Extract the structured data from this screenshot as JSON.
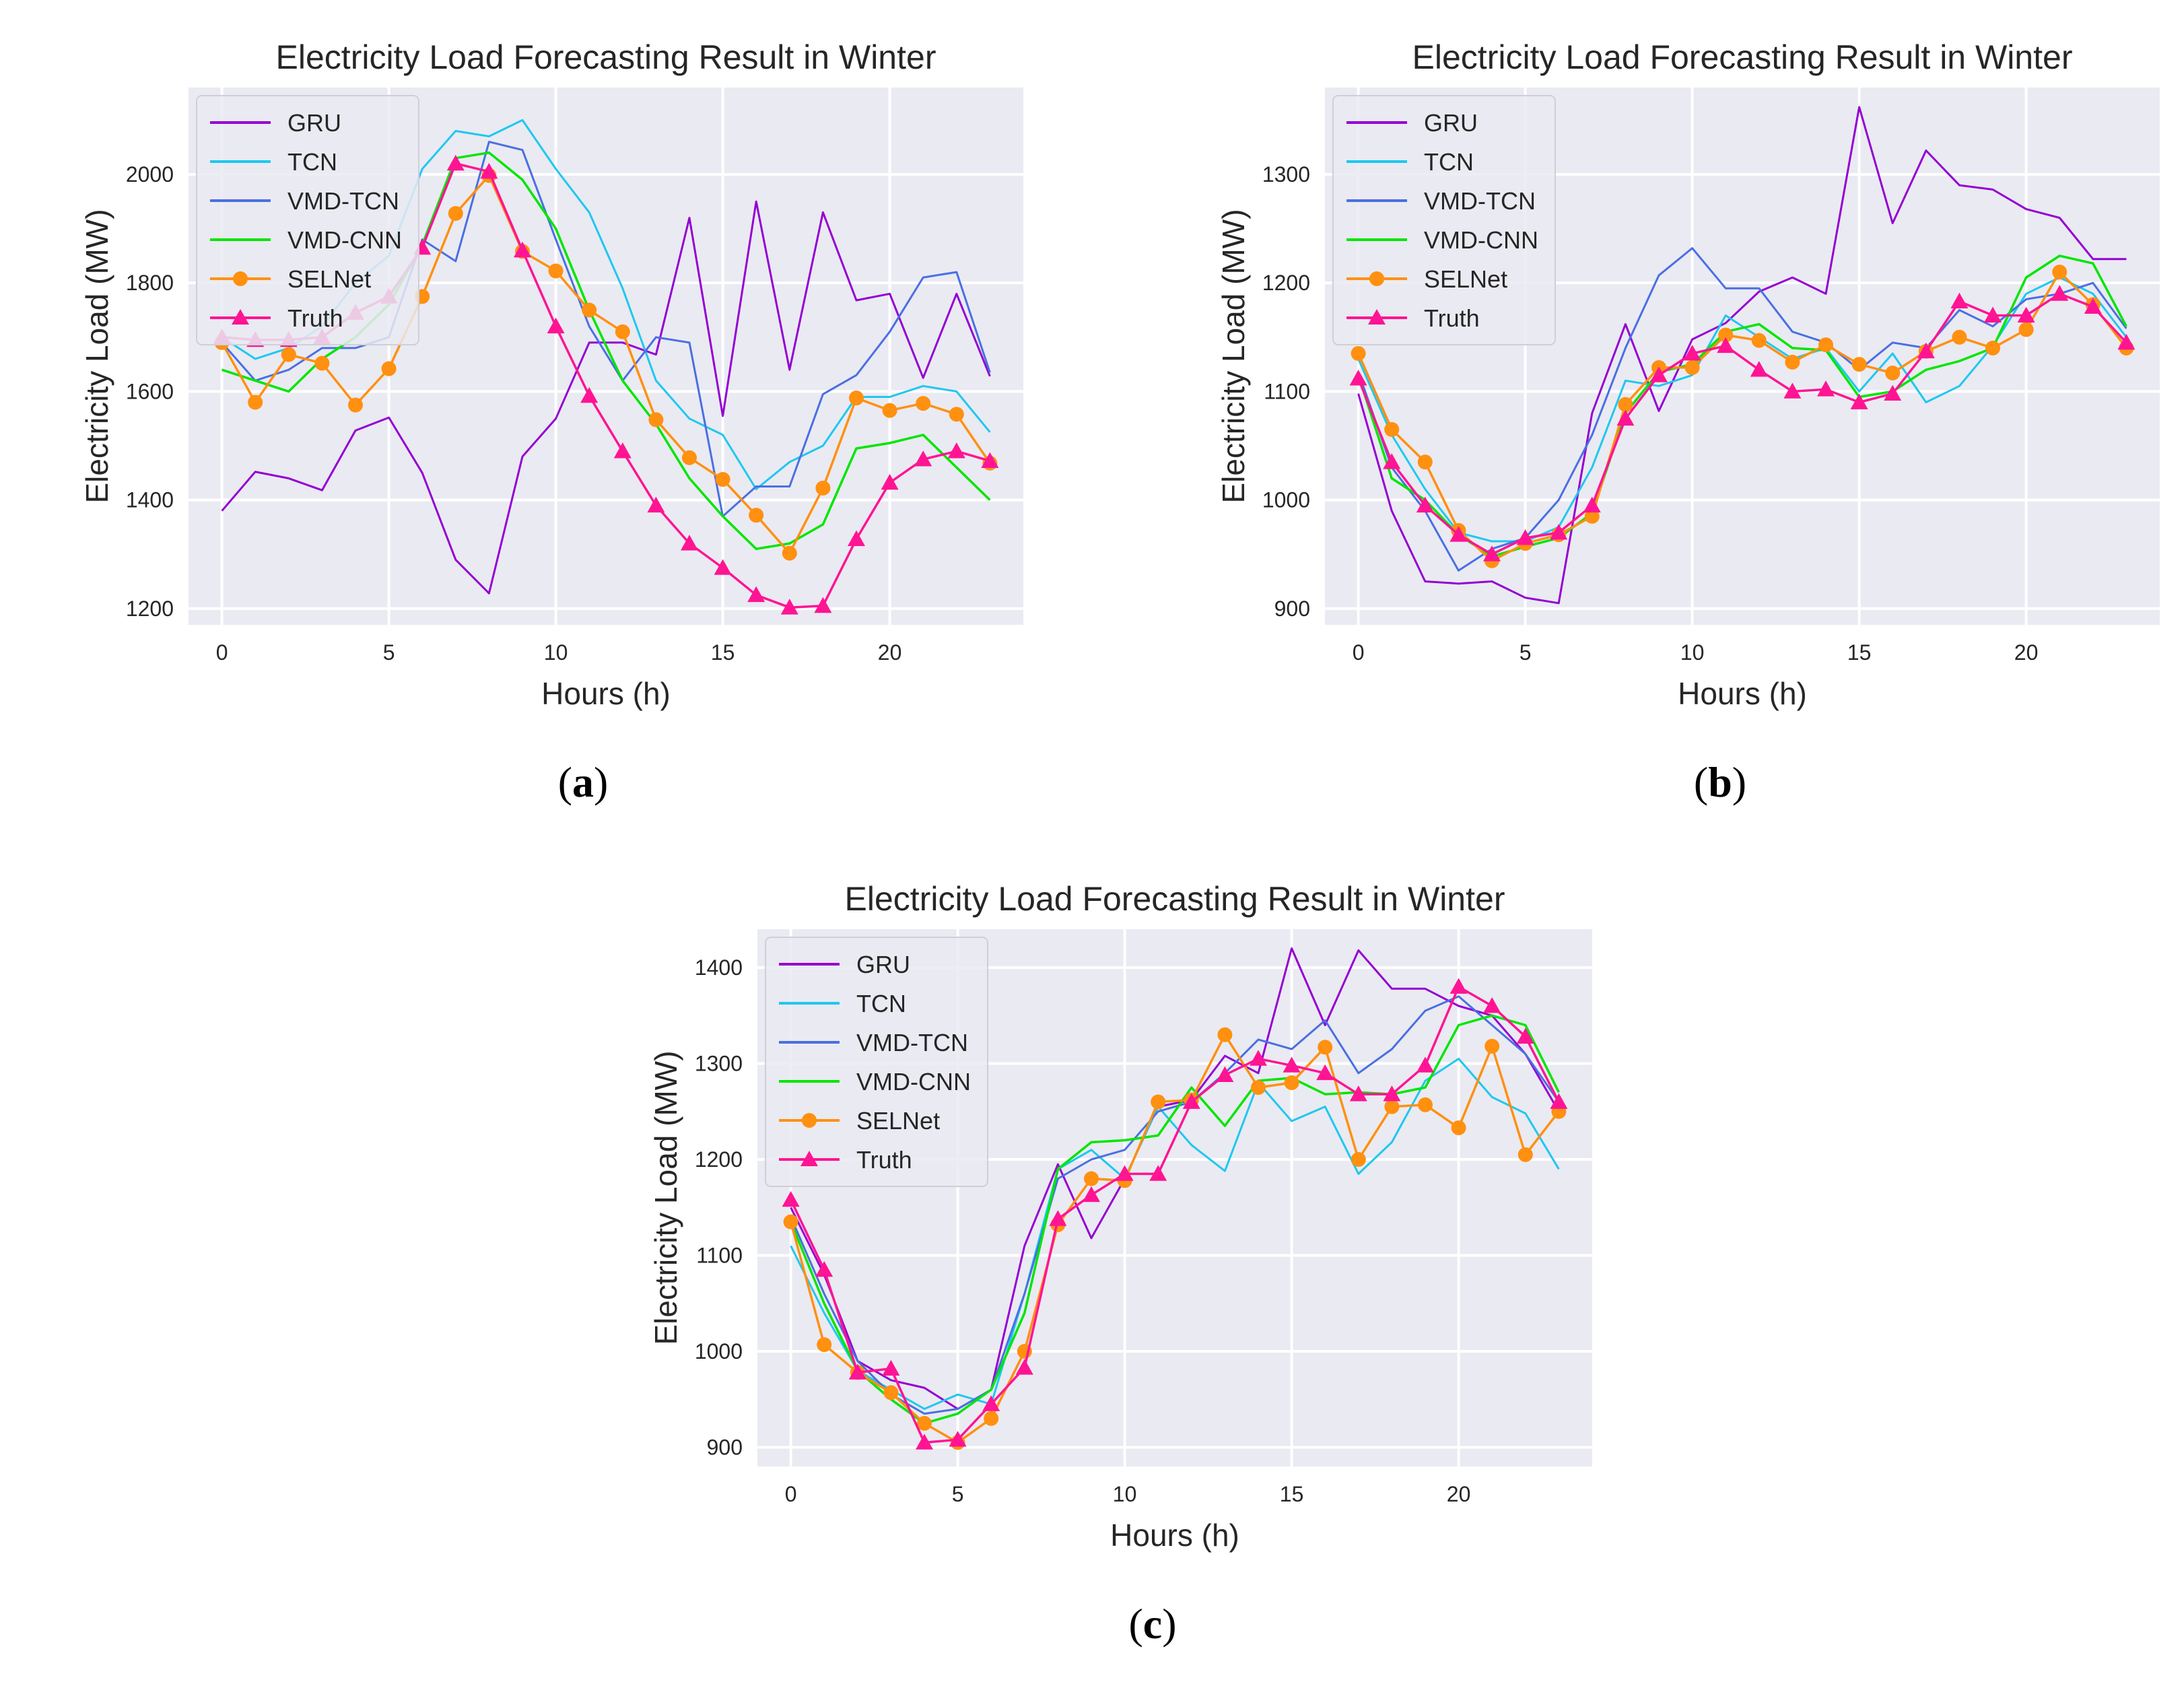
{
  "captions": {
    "a": "a",
    "b": "b",
    "c": "c"
  },
  "style": {
    "series_colors": {
      "GRU": "#9400d3",
      "TCN": "#1ec8f0",
      "VMD-TCN": "#4a6fe3",
      "VMD-CNN": "#00e600",
      "SELNet": "#ff9010",
      "Truth": "#ff1493"
    },
    "markers": {
      "SELNet": "circle",
      "Truth": "triangle"
    }
  },
  "chart_data": [
    {
      "type": "line",
      "panel": "a",
      "title": "Electricity Load Forecasting Result in Winter",
      "xlabel": "Hours (h)",
      "ylabel": "Electricity Load (MW)",
      "xlim": [
        -1,
        24
      ],
      "ylim": [
        1170,
        2160
      ],
      "xticks": [
        0,
        5,
        10,
        15,
        20
      ],
      "yticks": [
        1200,
        1400,
        1600,
        1800,
        2000
      ],
      "legend_position": "top-left",
      "x": [
        0,
        1,
        2,
        3,
        4,
        5,
        6,
        7,
        8,
        9,
        10,
        11,
        12,
        13,
        14,
        15,
        16,
        17,
        18,
        19,
        20,
        21,
        22,
        23
      ],
      "series": [
        {
          "name": "GRU",
          "values": [
            1380,
            1452,
            1440,
            1418,
            1528,
            1552,
            1450,
            1290,
            1228,
            1480,
            1550,
            1690,
            1690,
            1668,
            1920,
            1555,
            1950,
            1640,
            1930,
            1768,
            1780,
            1625,
            1780,
            1628
          ]
        },
        {
          "name": "TCN",
          "values": [
            1700,
            1660,
            1680,
            1720,
            1800,
            1850,
            2010,
            2080,
            2070,
            2100,
            2010,
            1930,
            1790,
            1620,
            1550,
            1520,
            1420,
            1470,
            1500,
            1590,
            1590,
            1610,
            1600,
            1525
          ]
        },
        {
          "name": "VMD-TCN",
          "values": [
            1690,
            1620,
            1640,
            1680,
            1680,
            1700,
            1880,
            1840,
            2060,
            2045,
            1880,
            1720,
            1620,
            1700,
            1690,
            1370,
            1425,
            1425,
            1595,
            1630,
            1710,
            1810,
            1820,
            1635
          ]
        },
        {
          "name": "VMD-CNN",
          "values": [
            1640,
            1620,
            1600,
            1660,
            1700,
            1760,
            1870,
            2030,
            2040,
            1990,
            1900,
            1750,
            1620,
            1540,
            1440,
            1370,
            1310,
            1320,
            1355,
            1495,
            1505,
            1520,
            1460,
            1400
          ]
        },
        {
          "name": "SELNet",
          "values": [
            1690,
            1580,
            1668,
            1652,
            1575,
            1642,
            1775,
            1928,
            1998,
            1858,
            1822,
            1750,
            1710,
            1548,
            1478,
            1438,
            1372,
            1302,
            1422,
            1588,
            1565,
            1578,
            1558,
            1468
          ]
        },
        {
          "name": "Truth",
          "values": [
            1700,
            1695,
            1695,
            1700,
            1745,
            1775,
            1865,
            2020,
            2005,
            1860,
            1720,
            1592,
            1490,
            1390,
            1320,
            1275,
            1225,
            1202,
            1205,
            1328,
            1432,
            1475,
            1490,
            1472
          ]
        }
      ]
    },
    {
      "type": "line",
      "panel": "b",
      "title": "Electricity Load Forecasting Result in Winter",
      "xlabel": "Hours (h)",
      "ylabel": "Electricity Load (MW)",
      "xlim": [
        -1,
        24
      ],
      "ylim": [
        885,
        1380
      ],
      "xticks": [
        0,
        5,
        10,
        15,
        20
      ],
      "yticks": [
        900,
        1000,
        1100,
        1200,
        1300
      ],
      "legend_position": "top-left",
      "x": [
        0,
        1,
        2,
        3,
        4,
        5,
        6,
        7,
        8,
        9,
        10,
        11,
        12,
        13,
        14,
        15,
        16,
        17,
        18,
        19,
        20,
        21,
        22,
        23
      ],
      "series": [
        {
          "name": "GRU",
          "values": [
            1098,
            990,
            925,
            923,
            925,
            910,
            905,
            1080,
            1162,
            1082,
            1148,
            1163,
            1192,
            1205,
            1190,
            1362,
            1255,
            1322,
            1290,
            1286,
            1268,
            1260,
            1222,
            1222
          ]
        },
        {
          "name": "TCN",
          "values": [
            1130,
            1060,
            1010,
            970,
            962,
            962,
            975,
            1030,
            1110,
            1105,
            1115,
            1170,
            1150,
            1130,
            1140,
            1100,
            1135,
            1090,
            1105,
            1142,
            1190,
            1205,
            1190,
            1150
          ]
        },
        {
          "name": "VMD-TCN",
          "values": [
            1118,
            1030,
            990,
            935,
            955,
            965,
            1000,
            1060,
            1140,
            1207,
            1232,
            1195,
            1195,
            1155,
            1145,
            1120,
            1145,
            1140,
            1175,
            1160,
            1185,
            1190,
            1200,
            1158
          ]
        },
        {
          "name": "VMD-CNN",
          "values": [
            1115,
            1020,
            1000,
            968,
            948,
            957,
            965,
            988,
            1080,
            1118,
            1125,
            1155,
            1162,
            1140,
            1138,
            1095,
            1100,
            1120,
            1128,
            1140,
            1205,
            1225,
            1218,
            1160
          ]
        },
        {
          "name": "SELNet",
          "values": [
            1135,
            1065,
            1035,
            972,
            944,
            960,
            968,
            985,
            1088,
            1122,
            1122,
            1152,
            1147,
            1127,
            1143,
            1125,
            1117,
            1137,
            1150,
            1140,
            1157,
            1210,
            1180,
            1140
          ]
        },
        {
          "name": "Truth",
          "values": [
            1112,
            1035,
            995,
            968,
            950,
            965,
            970,
            995,
            1075,
            1115,
            1135,
            1142,
            1120,
            1100,
            1102,
            1090,
            1098,
            1137,
            1183,
            1170,
            1170,
            1190,
            1178,
            1145
          ]
        }
      ]
    },
    {
      "type": "line",
      "panel": "c",
      "title": "Electricity Load Forecasting Result in Winter",
      "xlabel": "Hours (h)",
      "ylabel": "Electricity Load (MW)",
      "xlim": [
        -1,
        24
      ],
      "ylim": [
        880,
        1440
      ],
      "xticks": [
        0,
        5,
        10,
        15,
        20
      ],
      "yticks": [
        900,
        1000,
        1100,
        1200,
        1300,
        1400
      ],
      "legend_position": "top-left",
      "x": [
        0,
        1,
        2,
        3,
        4,
        5,
        6,
        7,
        8,
        9,
        10,
        11,
        12,
        13,
        14,
        15,
        16,
        17,
        18,
        19,
        20,
        21,
        22,
        23
      ],
      "series": [
        {
          "name": "GRU",
          "values": [
            1150,
            1080,
            990,
            970,
            962,
            940,
            960,
            1110,
            1195,
            1118,
            1180,
            1255,
            1262,
            1308,
            1290,
            1420,
            1340,
            1418,
            1378,
            1378,
            1360,
            1350,
            1310,
            1250
          ]
        },
        {
          "name": "TCN",
          "values": [
            1110,
            1040,
            980,
            960,
            940,
            955,
            945,
            1060,
            1190,
            1210,
            1180,
            1255,
            1215,
            1188,
            1280,
            1240,
            1255,
            1185,
            1218,
            1282,
            1305,
            1265,
            1248,
            1190
          ]
        },
        {
          "name": "VMD-TCN",
          "values": [
            1140,
            1060,
            990,
            955,
            935,
            940,
            960,
            1060,
            1180,
            1200,
            1210,
            1250,
            1260,
            1290,
            1325,
            1315,
            1345,
            1290,
            1315,
            1355,
            1370,
            1340,
            1310,
            1260
          ]
        },
        {
          "name": "VMD-CNN",
          "values": [
            1135,
            1050,
            980,
            950,
            925,
            935,
            960,
            1040,
            1190,
            1218,
            1220,
            1225,
            1275,
            1235,
            1282,
            1285,
            1268,
            1270,
            1268,
            1275,
            1340,
            1350,
            1340,
            1270
          ]
        },
        {
          "name": "SELNet",
          "values": [
            1135,
            1007,
            978,
            957,
            925,
            905,
            930,
            1000,
            1132,
            1180,
            1178,
            1260,
            1262,
            1330,
            1275,
            1280,
            1317,
            1200,
            1255,
            1257,
            1233,
            1318,
            1205,
            1250
          ]
        },
        {
          "name": "Truth",
          "values": [
            1158,
            1085,
            978,
            982,
            905,
            908,
            945,
            983,
            1138,
            1163,
            1185,
            1185,
            1260,
            1288,
            1305,
            1298,
            1290,
            1268,
            1268,
            1298,
            1380,
            1360,
            1328,
            1260
          ]
        }
      ]
    }
  ]
}
